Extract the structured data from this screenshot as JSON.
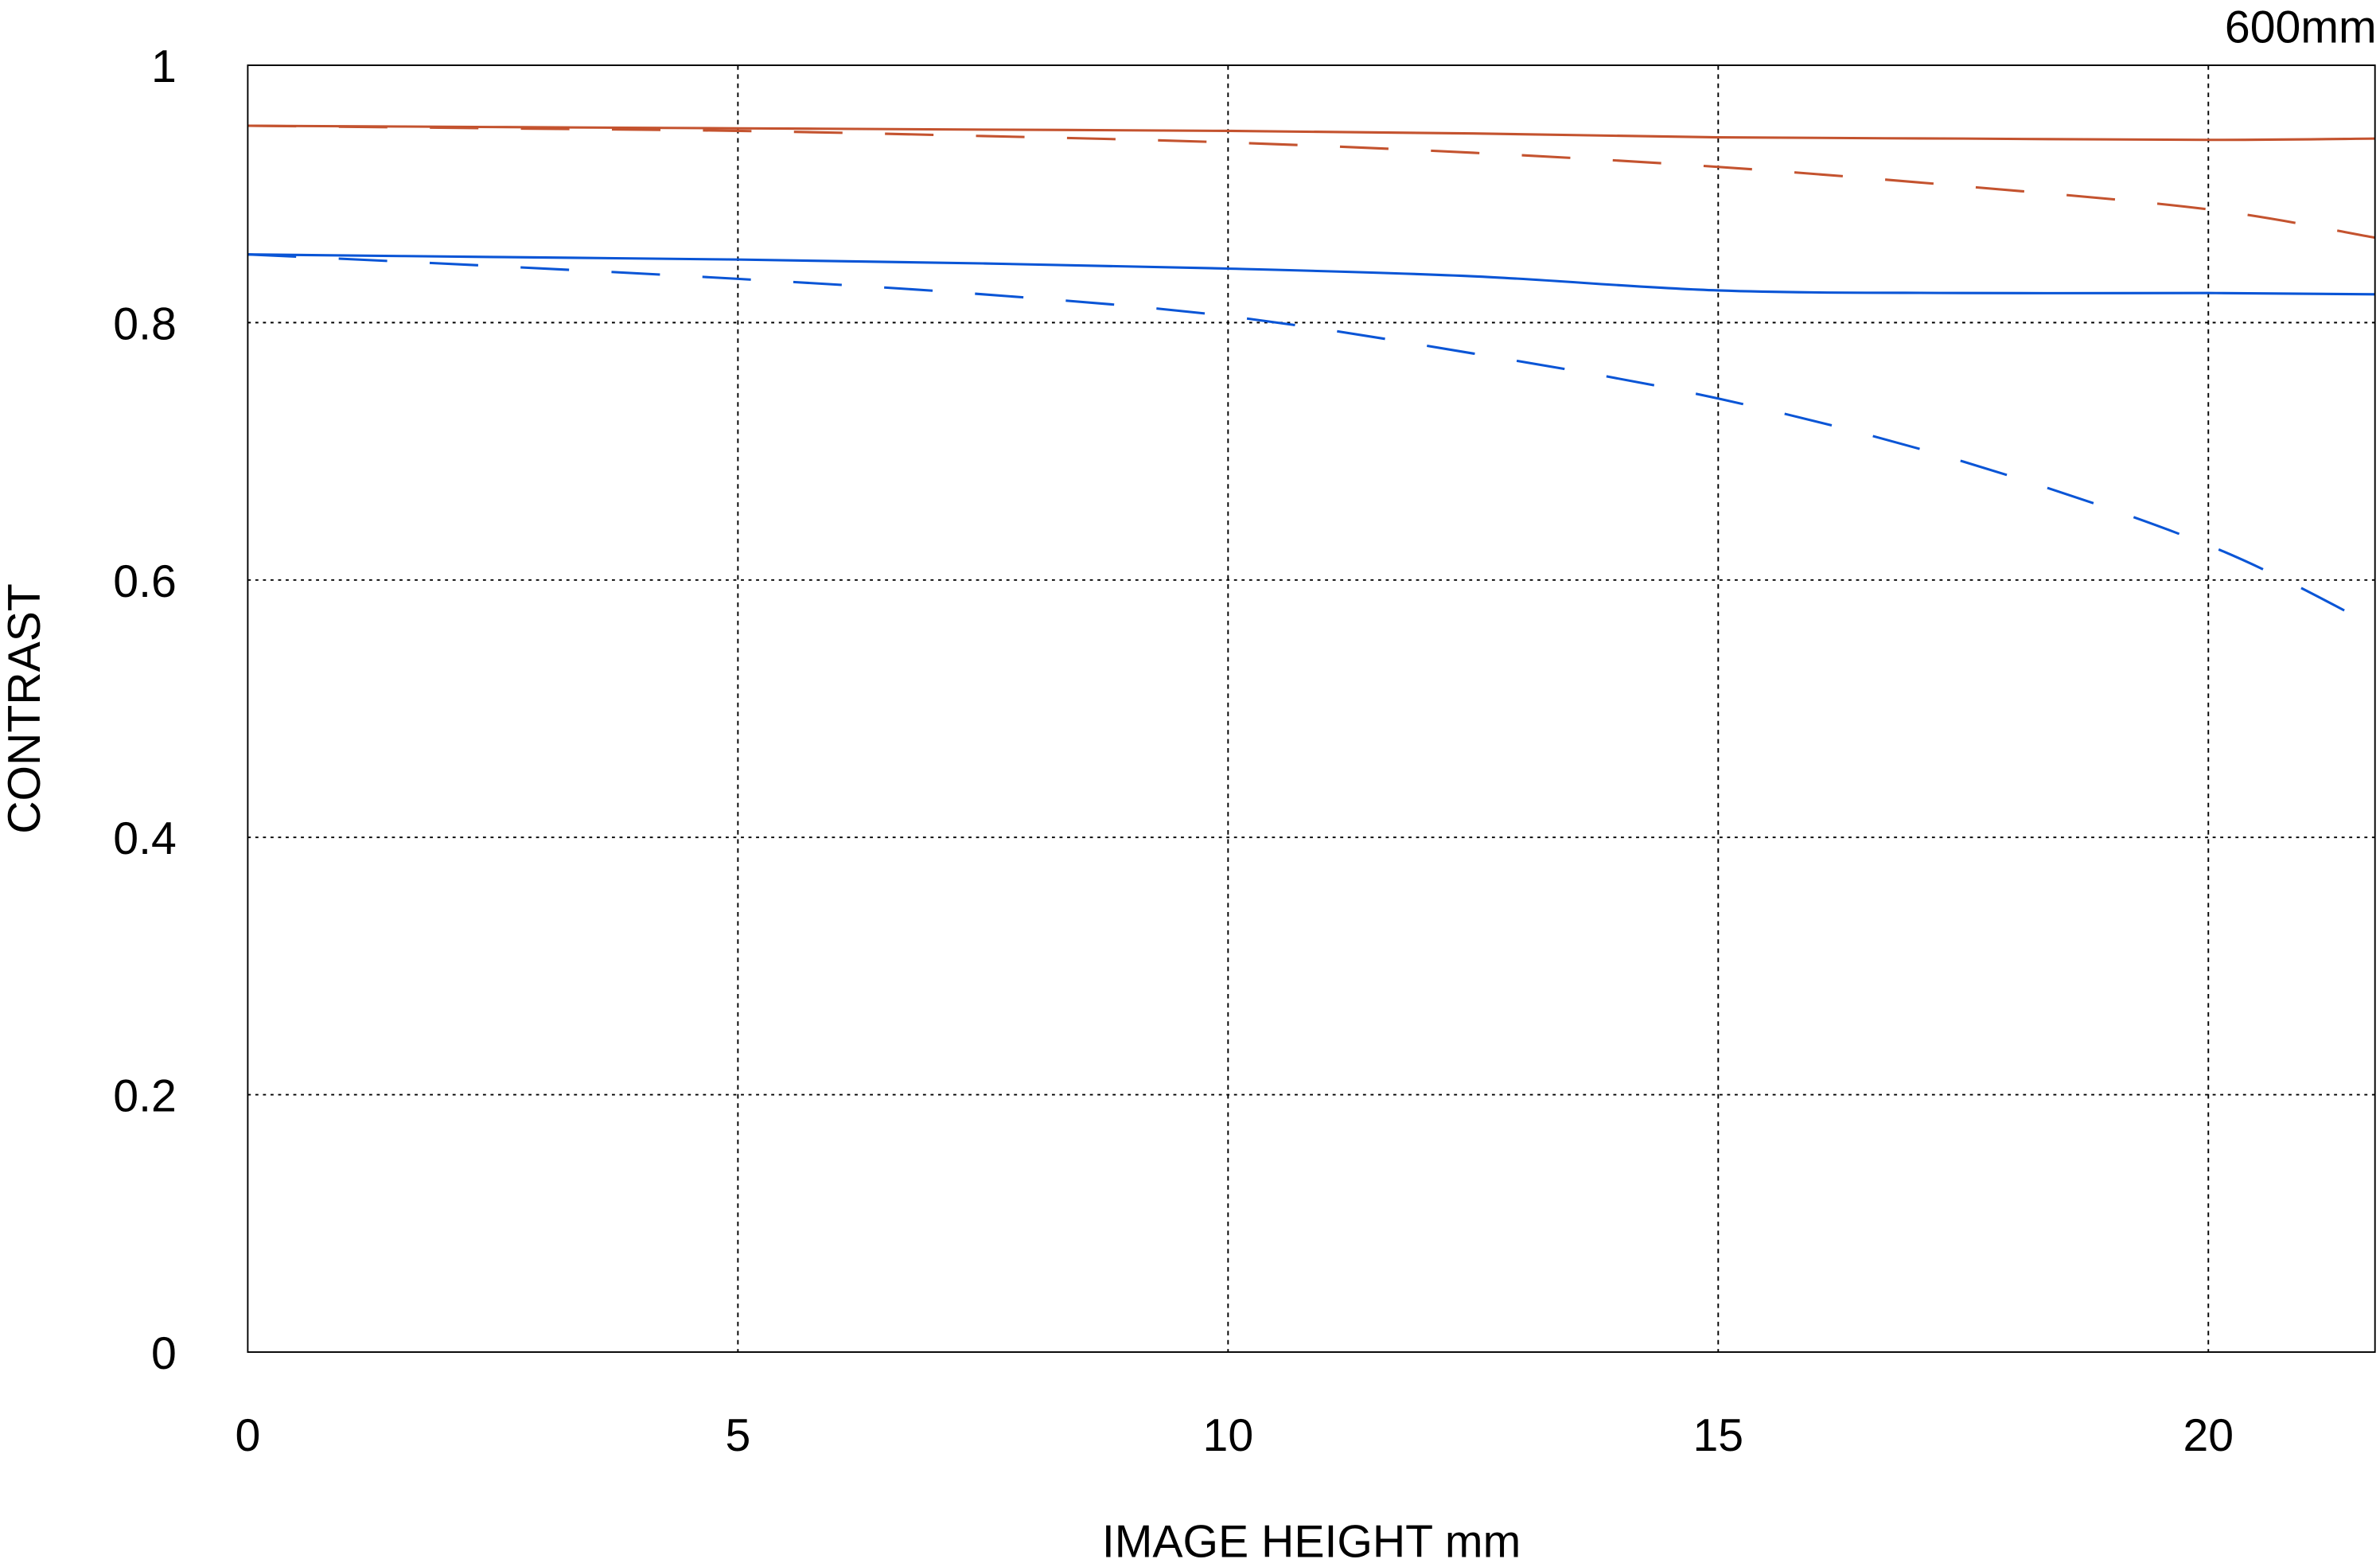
{
  "chart_data": {
    "type": "line",
    "title": "600mm",
    "xlabel": "IMAGE HEIGHT  mm",
    "ylabel": "CONTRAST",
    "xlim": [
      0,
      21.7
    ],
    "ylim": [
      0,
      1
    ],
    "xticks": [
      0,
      5,
      10,
      15,
      20
    ],
    "yticks": [
      0,
      0.2,
      0.4,
      0.6,
      0.8,
      1
    ],
    "ytick_labels": [
      "0",
      "0.2",
      "0.4",
      "0.6",
      "0.8",
      "1"
    ],
    "xtick_labels": [
      "0",
      "5",
      "10",
      "15",
      "20"
    ],
    "grid": true,
    "x": [
      0,
      2.5,
      5,
      7.5,
      10,
      12.5,
      15,
      17.5,
      20,
      21.7
    ],
    "series": [
      {
        "color": "#c4532f",
        "style": "solid",
        "values": [
          0.953,
          0.952,
          0.951,
          0.95,
          0.949,
          0.947,
          0.944,
          0.943,
          0.942,
          0.943
        ]
      },
      {
        "color": "#c4532f",
        "style": "dashed",
        "values": [
          0.953,
          0.951,
          0.949,
          0.945,
          0.94,
          0.932,
          0.921,
          0.906,
          0.888,
          0.866
        ]
      },
      {
        "color": "#0a55d6",
        "style": "solid",
        "values": [
          0.853,
          0.851,
          0.849,
          0.846,
          0.842,
          0.836,
          0.825,
          0.823,
          0.823,
          0.822
        ]
      },
      {
        "color": "#0a55d6",
        "style": "dashed",
        "values": [
          0.853,
          0.844,
          0.834,
          0.822,
          0.805,
          0.776,
          0.741,
          0.692,
          0.627,
          0.564
        ]
      }
    ]
  }
}
